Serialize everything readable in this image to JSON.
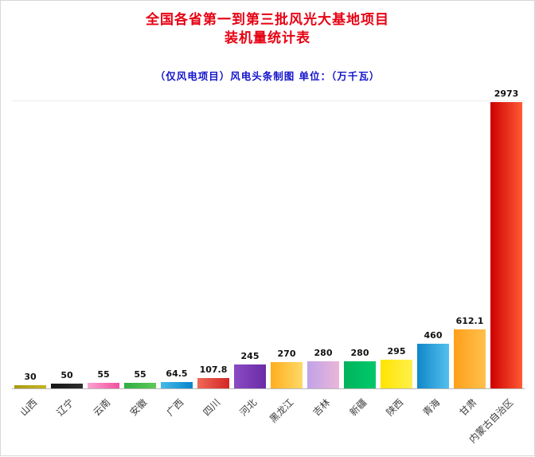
{
  "header": {
    "title_line1": "全国各省第一到第三批风光大基地项目",
    "title_line2": "装机量统计表",
    "subtitle": "（仅风电项目）风电头条制图 单位：（万千瓦）",
    "title_color": "#e60012",
    "subtitle_color": "#1414cc"
  },
  "chart_data": {
    "type": "bar",
    "title": "全国各省第一到第三批风光大基地项目装机量统计表",
    "subtitle": "（仅风电项目）风电头条制图",
    "unit": "万千瓦",
    "categories": [
      "山西",
      "辽宁",
      "云南",
      "安徽",
      "广西",
      "四川",
      "河北",
      "黑龙江",
      "吉林",
      "新疆",
      "陕西",
      "青海",
      "甘肃",
      "内蒙古自治区"
    ],
    "values": [
      30,
      50,
      55,
      55,
      64.5,
      107.8,
      245,
      270,
      280,
      280,
      295,
      460,
      612.1,
      2973
    ],
    "bar_colors": [
      [
        "#a99b12",
        "#c4b424"
      ],
      [
        "#161616",
        "#2e2e2e"
      ],
      [
        "#fca2cf",
        "#f2509e"
      ],
      [
        "#2fae44",
        "#5cc957"
      ],
      [
        "#45bce8",
        "#0a84cb"
      ],
      [
        "#ef6a58",
        "#d42525"
      ],
      [
        "#8a4cc4",
        "#6a2ba6"
      ],
      [
        "#ffae1e",
        "#ffd968"
      ],
      [
        "#c0a2e8",
        "#eab6d8"
      ],
      [
        "#00b35c",
        "#00c96a"
      ],
      [
        "#ffe400",
        "#fff04d"
      ],
      [
        "#1186c8",
        "#53c0ee"
      ],
      [
        "#ff9f1a",
        "#ffc04d"
      ],
      [
        "#cd0000",
        "#ff5a36"
      ]
    ],
    "xlabel": "",
    "ylabel": "",
    "ylim": [
      0,
      3000
    ],
    "grid": false,
    "legend": "none",
    "value_labels": true
  }
}
